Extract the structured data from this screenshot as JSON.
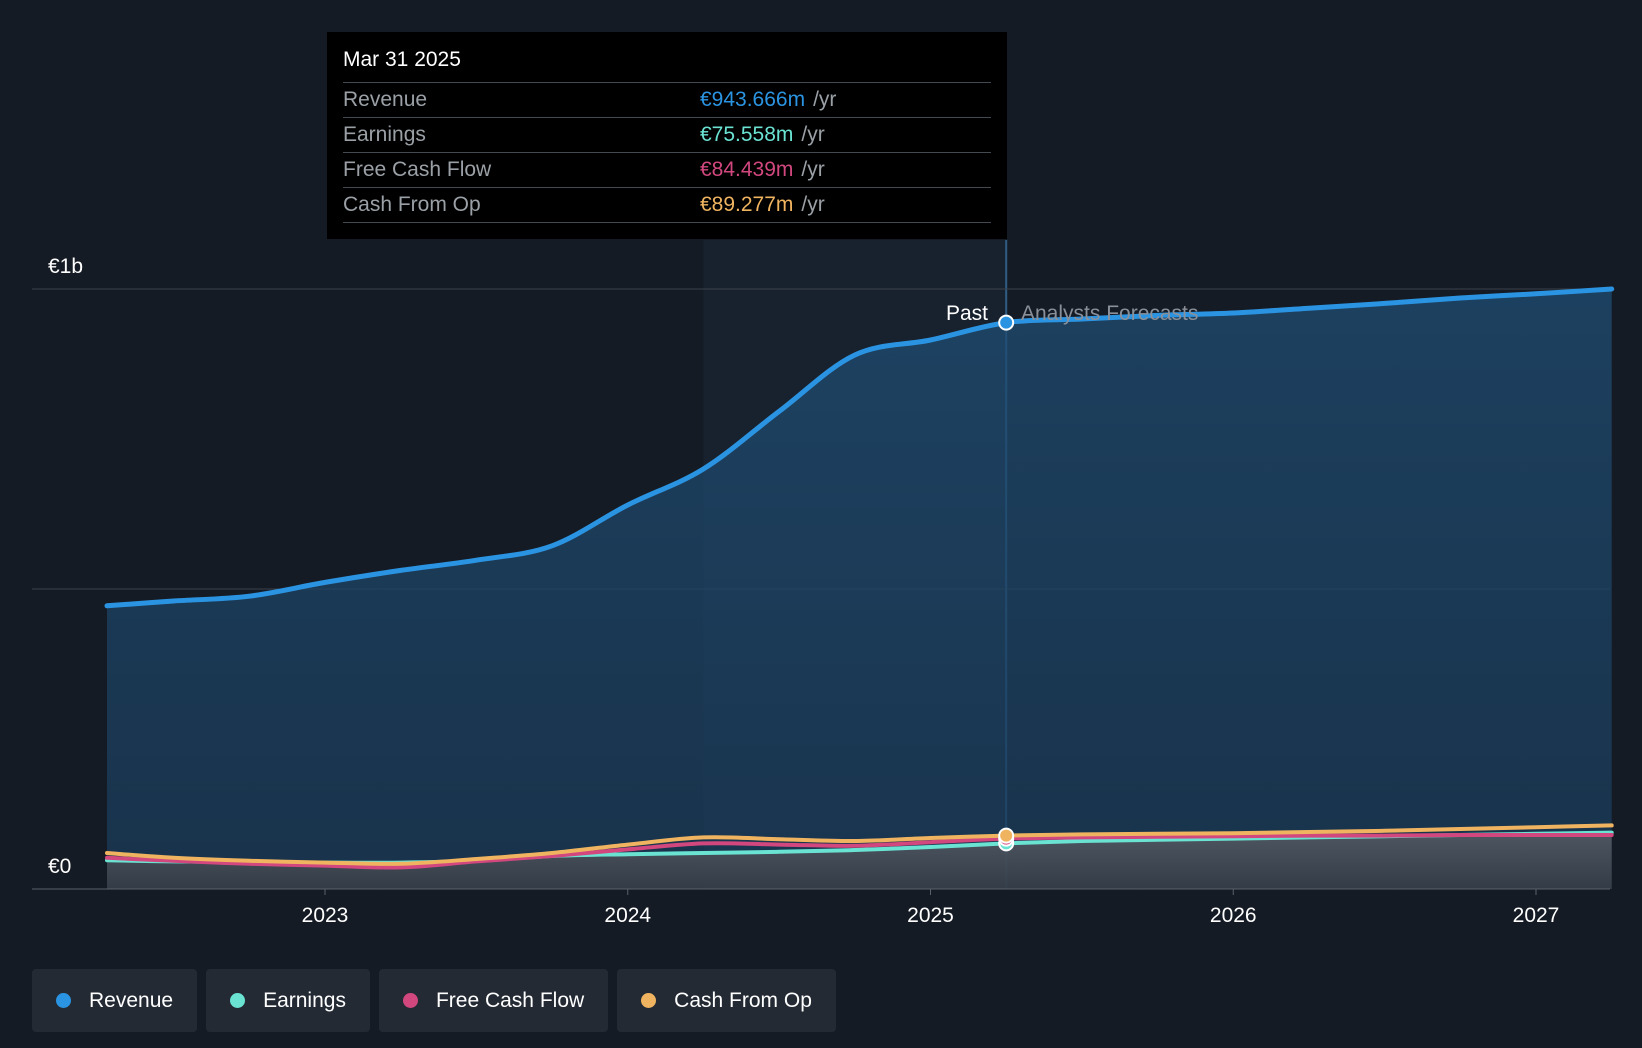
{
  "tooltip": {
    "date": "Mar 31 2025",
    "rows": [
      {
        "label": "Revenue",
        "value": "€943.666m",
        "unit": "/yr",
        "color": "#2b94e2"
      },
      {
        "label": "Earnings",
        "value": "€75.558m",
        "unit": "/yr",
        "color": "#6be3d3"
      },
      {
        "label": "Free Cash Flow",
        "value": "€84.439m",
        "unit": "/yr",
        "color": "#d1477e"
      },
      {
        "label": "Cash From Op",
        "value": "€89.277m",
        "unit": "/yr",
        "color": "#f0b460"
      }
    ]
  },
  "labels": {
    "past": "Past",
    "forecast": "Analysts Forecasts"
  },
  "legend": [
    {
      "label": "Revenue",
      "color": "#2b94e2"
    },
    {
      "label": "Earnings",
      "color": "#6be3d3"
    },
    {
      "label": "Free Cash Flow",
      "color": "#d1477e"
    },
    {
      "label": "Cash From Op",
      "color": "#f0b460"
    }
  ],
  "chart_data": {
    "type": "line",
    "y_unit": "€m",
    "ylim": [
      0,
      1000
    ],
    "ytick_labels": [
      {
        "value": 1000,
        "label": "€1b"
      },
      {
        "value": 0,
        "label": "€0"
      }
    ],
    "xlim": [
      2022.2,
      2027.25
    ],
    "xtick_labels": [
      {
        "value": 2023,
        "label": "2023"
      },
      {
        "value": 2024,
        "label": "2024"
      },
      {
        "value": 2025,
        "label": "2025"
      },
      {
        "value": 2026,
        "label": "2026"
      },
      {
        "value": 2027,
        "label": "2027"
      }
    ],
    "highlight_range": [
      2024.25,
      2025.25
    ],
    "divider_x": 2025.25,
    "grid": true,
    "legend_position": "bottom-left",
    "series": [
      {
        "name": "Revenue",
        "color": "#2b94e2",
        "area": true,
        "points": [
          [
            2022.28,
            472
          ],
          [
            2022.5,
            480
          ],
          [
            2022.75,
            488
          ],
          [
            2023.0,
            511
          ],
          [
            2023.25,
            531
          ],
          [
            2023.5,
            548
          ],
          [
            2023.75,
            572
          ],
          [
            2024.0,
            640
          ],
          [
            2024.25,
            700
          ],
          [
            2024.5,
            796
          ],
          [
            2024.75,
            890
          ],
          [
            2025.0,
            915
          ],
          [
            2025.25,
            944
          ],
          [
            2025.5,
            950
          ],
          [
            2025.75,
            956
          ],
          [
            2026.0,
            960
          ],
          [
            2026.25,
            968
          ],
          [
            2026.5,
            976
          ],
          [
            2026.75,
            985
          ],
          [
            2027.0,
            992
          ],
          [
            2027.25,
            1000
          ]
        ]
      },
      {
        "name": "Earnings",
        "color": "#6be3d3",
        "area": false,
        "points": [
          [
            2022.28,
            48
          ],
          [
            2022.5,
            46
          ],
          [
            2022.75,
            45
          ],
          [
            2023.0,
            44
          ],
          [
            2023.25,
            44
          ],
          [
            2023.5,
            47
          ],
          [
            2023.75,
            55
          ],
          [
            2024.0,
            58
          ],
          [
            2024.25,
            60
          ],
          [
            2024.5,
            62
          ],
          [
            2024.75,
            65
          ],
          [
            2025.0,
            70
          ],
          [
            2025.25,
            76
          ],
          [
            2025.5,
            80
          ],
          [
            2025.75,
            82
          ],
          [
            2026.0,
            84
          ],
          [
            2026.25,
            86
          ],
          [
            2026.5,
            88
          ],
          [
            2026.75,
            90
          ],
          [
            2027.0,
            92
          ],
          [
            2027.25,
            94
          ]
        ]
      },
      {
        "name": "Free Cash Flow",
        "color": "#d1477e",
        "area": false,
        "points": [
          [
            2022.28,
            52
          ],
          [
            2022.5,
            47
          ],
          [
            2022.75,
            42
          ],
          [
            2023.0,
            39
          ],
          [
            2023.25,
            36
          ],
          [
            2023.5,
            46
          ],
          [
            2023.75,
            55
          ],
          [
            2024.0,
            66
          ],
          [
            2024.25,
            76
          ],
          [
            2024.5,
            74
          ],
          [
            2024.75,
            72
          ],
          [
            2025.0,
            78
          ],
          [
            2025.25,
            84
          ],
          [
            2025.5,
            86
          ],
          [
            2025.75,
            87
          ],
          [
            2026.0,
            88
          ],
          [
            2026.25,
            89
          ],
          [
            2026.5,
            89
          ],
          [
            2026.75,
            90
          ],
          [
            2027.0,
            90
          ],
          [
            2027.25,
            90
          ]
        ]
      },
      {
        "name": "Cash From Op",
        "color": "#f0b460",
        "area": false,
        "points": [
          [
            2022.28,
            60
          ],
          [
            2022.5,
            52
          ],
          [
            2022.75,
            47
          ],
          [
            2023.0,
            44
          ],
          [
            2023.25,
            42
          ],
          [
            2023.5,
            50
          ],
          [
            2023.75,
            60
          ],
          [
            2024.0,
            74
          ],
          [
            2024.25,
            86
          ],
          [
            2024.5,
            83
          ],
          [
            2024.75,
            80
          ],
          [
            2025.0,
            85
          ],
          [
            2025.25,
            89
          ],
          [
            2025.5,
            91
          ],
          [
            2025.75,
            92
          ],
          [
            2026.0,
            93
          ],
          [
            2026.25,
            95
          ],
          [
            2026.5,
            97
          ],
          [
            2026.75,
            100
          ],
          [
            2027.0,
            103
          ],
          [
            2027.25,
            106
          ]
        ]
      }
    ]
  }
}
